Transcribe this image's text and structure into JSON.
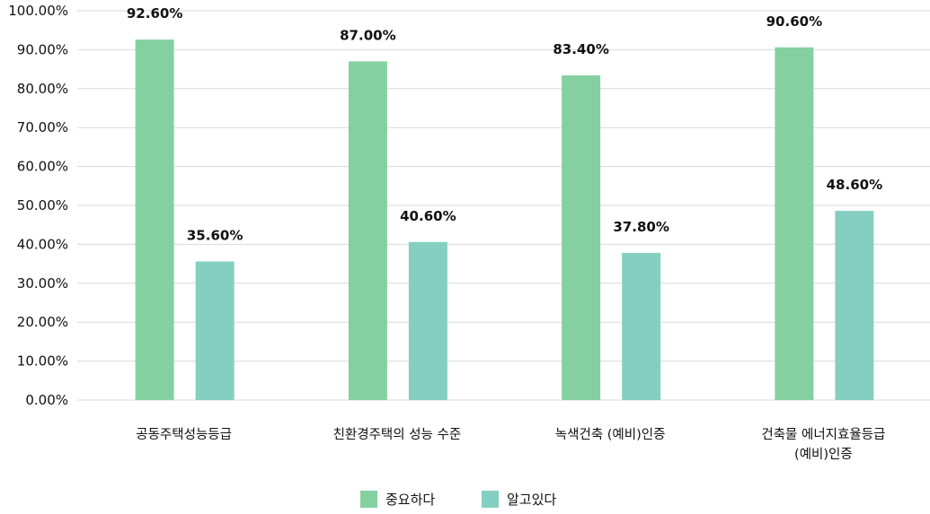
{
  "chart_data": {
    "type": "bar",
    "categories": [
      [
        "공동주택성능등급"
      ],
      [
        "친환경주택의 성능 수준"
      ],
      [
        "녹색건축 (예비)인증"
      ],
      [
        "건축물 에너지효율등급",
        "(예비)인증"
      ]
    ],
    "series": [
      {
        "name": "중요하다",
        "values": [
          92.6,
          87.0,
          83.4,
          90.6
        ],
        "labels": [
          "92.60%",
          "87.00%",
          "83.40%",
          "90.60%"
        ],
        "color": "#84D0A1"
      },
      {
        "name": "알고있다",
        "values": [
          35.6,
          40.6,
          37.8,
          48.6
        ],
        "labels": [
          "35.60%",
          "40.60%",
          "37.80%",
          "48.60%"
        ],
        "color": "#84CFC2"
      }
    ],
    "ylim": [
      0,
      100
    ],
    "y_ticks": [
      0,
      10,
      20,
      30,
      40,
      50,
      60,
      70,
      80,
      90,
      100
    ],
    "y_tick_labels": [
      "0.00%",
      "10.00%",
      "20.00%",
      "30.00%",
      "40.00%",
      "50.00%",
      "60.00%",
      "70.00%",
      "80.00%",
      "90.00%",
      "100.00%"
    ],
    "grid": true,
    "grid_color": "#D9D9D9",
    "legend_position": "bottom"
  }
}
